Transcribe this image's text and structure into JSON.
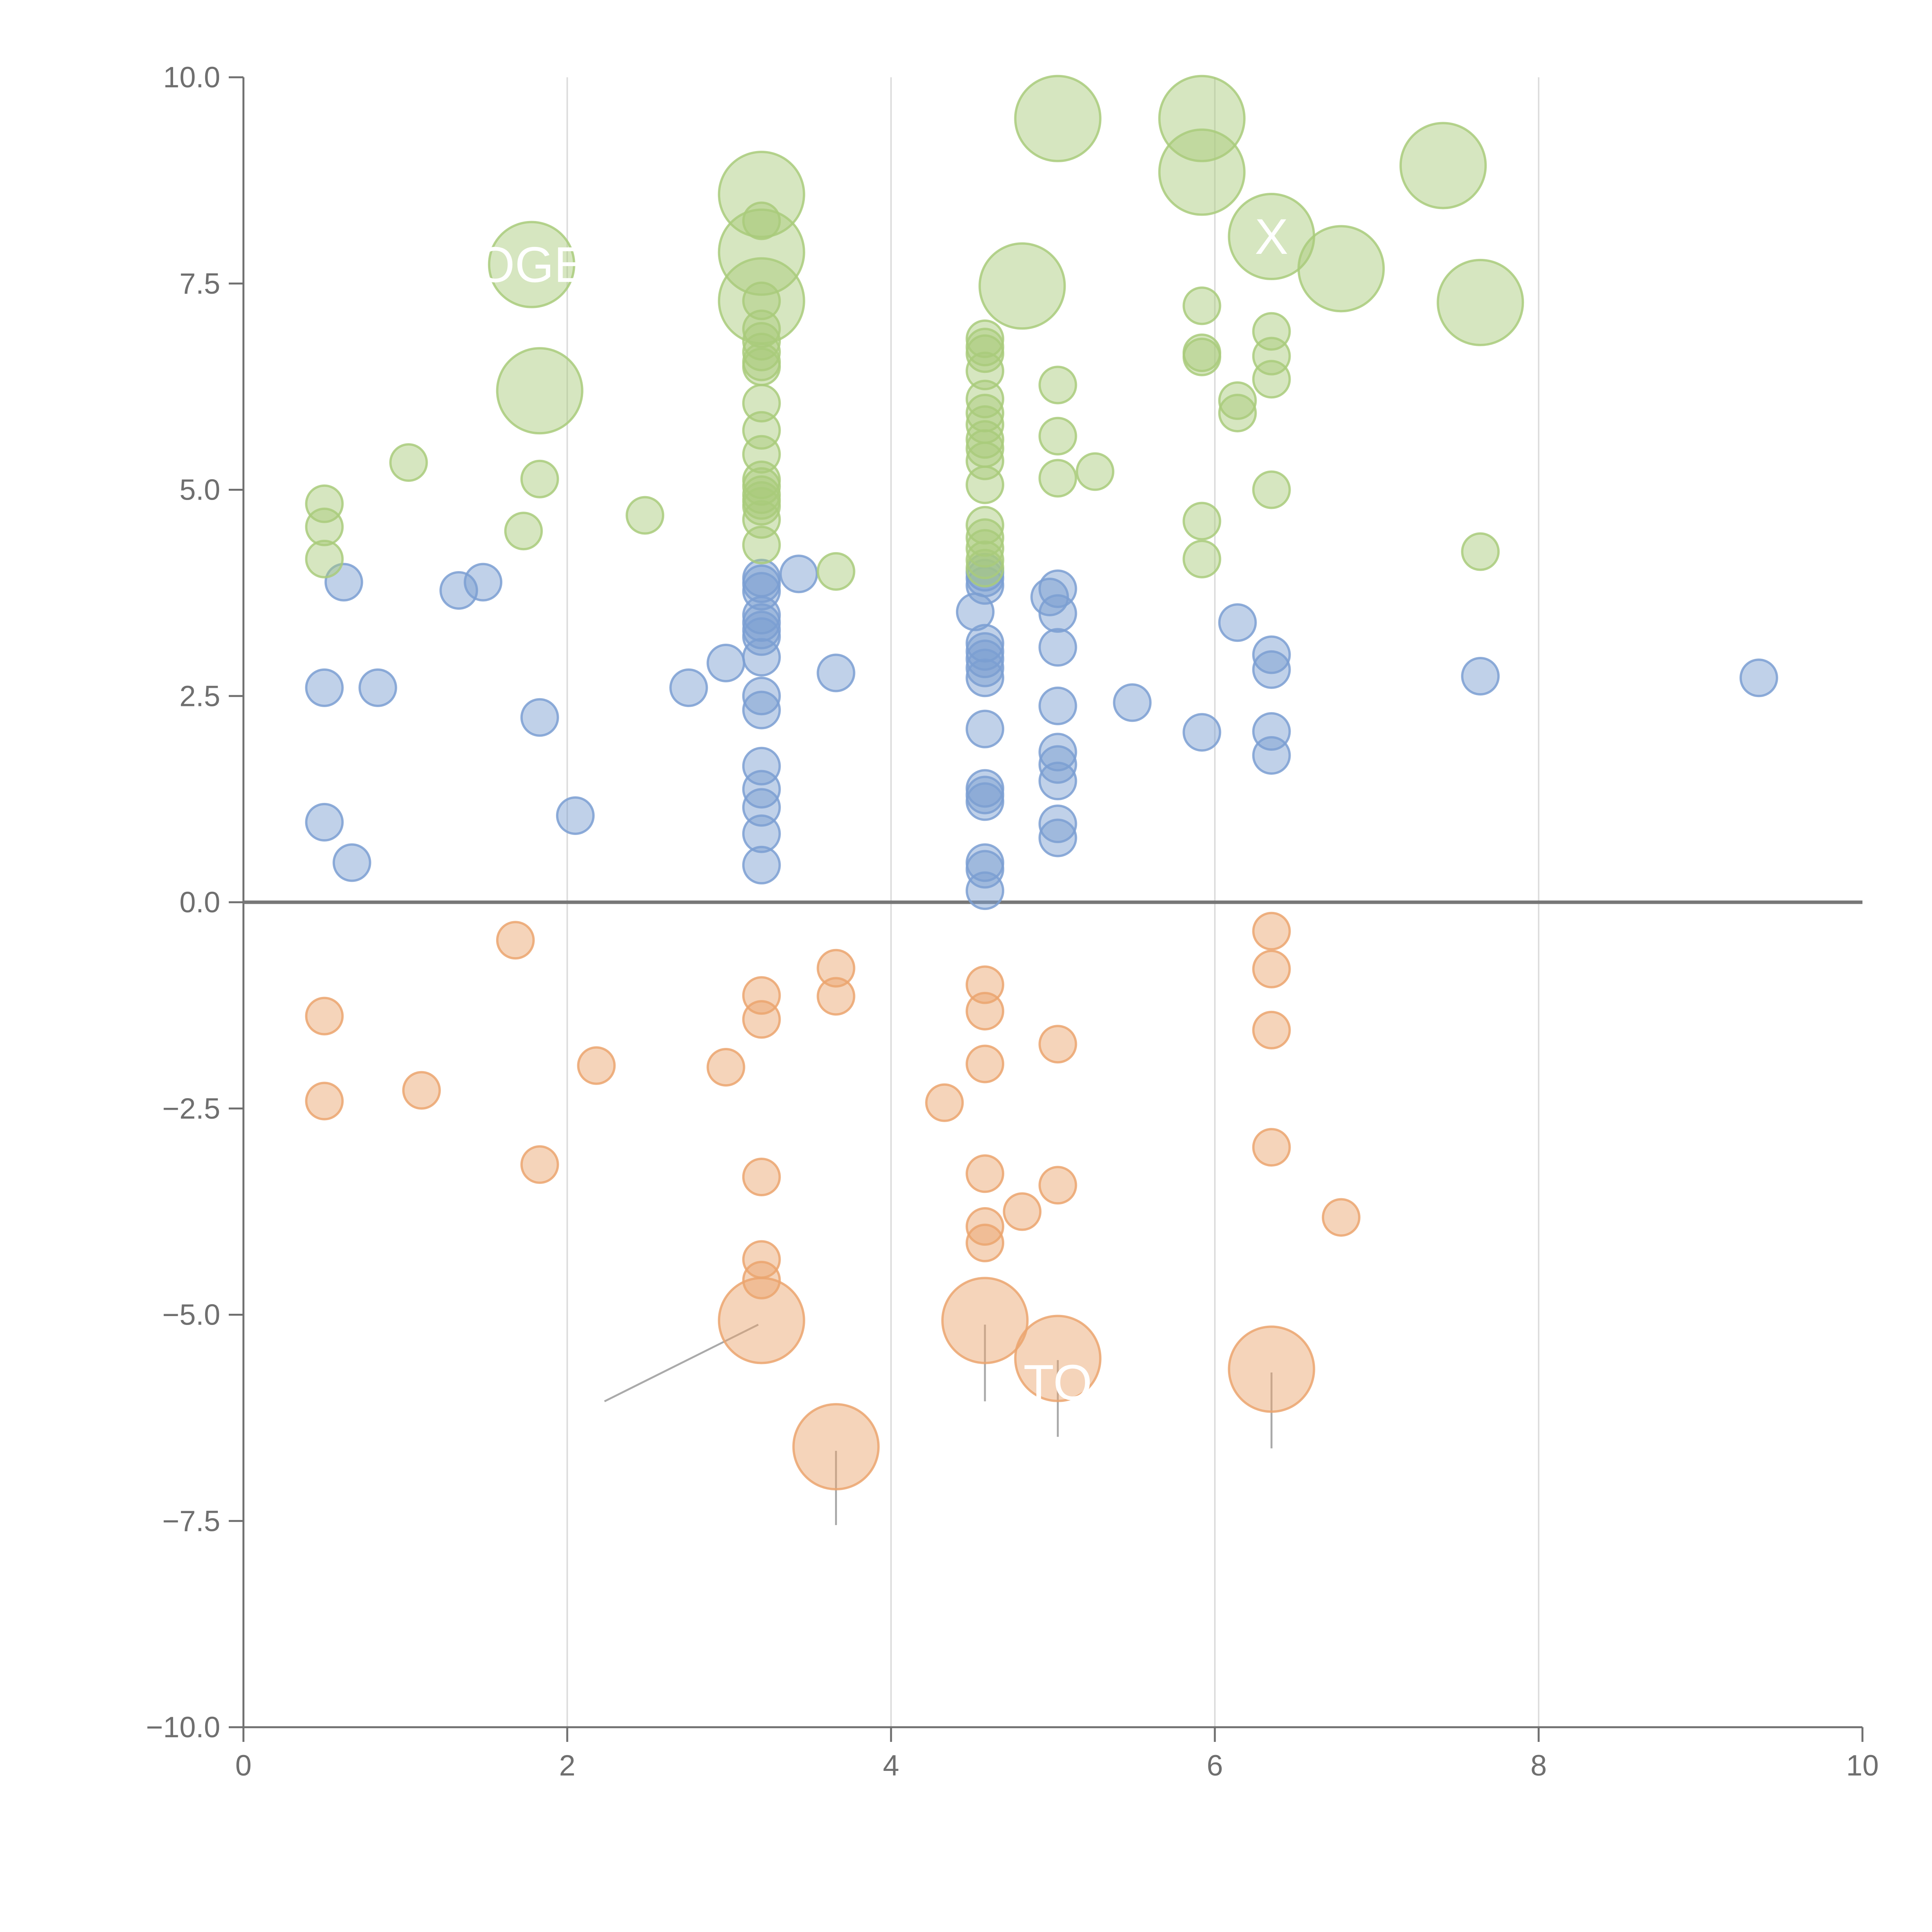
{
  "chart_data": {
    "type": "scatter",
    "title": "",
    "xlabel": "",
    "ylabel": "",
    "xlim": [
      0,
      10
    ],
    "ylim": [
      -10,
      10
    ],
    "x_ticks": [
      "0",
      "2",
      "4",
      "6",
      "8",
      "10"
    ],
    "x_tick_values": [
      0,
      2,
      4,
      6,
      8,
      10
    ],
    "y_ticks": [
      "10.0",
      "7.5",
      "5.0",
      "2.5",
      "0.0",
      "−2.5",
      "−5.0",
      "−7.5",
      "−10.0"
    ],
    "y_tick_values": [
      10,
      7.5,
      5,
      2.5,
      0,
      -2.5,
      -5,
      -7.5,
      -10
    ],
    "grid": "vertical",
    "zero_line": true,
    "colors": {
      "blue": "#7b9fd2",
      "green": "#a9cb7b",
      "orange": "#eba56f",
      "axis": "#6f6f6f",
      "grid": "#dddddd",
      "zero_line": "#777777",
      "leader": "#aaaaaa"
    },
    "series": [
      {
        "name": "Blue",
        "color": "#7b9fd2",
        "size": 1,
        "points": [
          [
            0.5,
            2.6
          ],
          [
            0.5,
            0.97
          ],
          [
            0.62,
            3.88
          ],
          [
            0.67,
            0.48
          ],
          [
            0.83,
            2.6
          ],
          [
            1.33,
            3.78
          ],
          [
            1.48,
            3.88
          ],
          [
            1.83,
            2.24
          ],
          [
            2.05,
            1.05
          ],
          [
            2.75,
            2.6
          ],
          [
            2.98,
            2.9
          ],
          [
            3.2,
            3.93
          ],
          [
            3.2,
            3.86
          ],
          [
            3.2,
            3.77
          ],
          [
            3.2,
            3.48
          ],
          [
            3.2,
            3.39
          ],
          [
            3.2,
            3.3
          ],
          [
            3.2,
            3.22
          ],
          [
            3.2,
            2.97
          ],
          [
            3.2,
            2.5
          ],
          [
            3.2,
            2.33
          ],
          [
            3.2,
            1.65
          ],
          [
            3.2,
            1.37
          ],
          [
            3.2,
            1.15
          ],
          [
            3.2,
            0.83
          ],
          [
            3.2,
            0.45
          ],
          [
            3.43,
            3.98
          ],
          [
            3.66,
            2.78
          ],
          [
            4.52,
            3.52
          ],
          [
            4.58,
            4.0
          ],
          [
            4.58,
            3.93
          ],
          [
            4.58,
            3.84
          ],
          [
            4.58,
            3.14
          ],
          [
            4.58,
            3.04
          ],
          [
            4.58,
            2.95
          ],
          [
            4.58,
            2.84
          ],
          [
            4.58,
            2.72
          ],
          [
            4.58,
            2.1
          ],
          [
            4.58,
            1.38
          ],
          [
            4.58,
            1.3
          ],
          [
            4.58,
            1.22
          ],
          [
            4.58,
            0.48
          ],
          [
            4.58,
            0.4
          ],
          [
            4.58,
            0.14
          ],
          [
            4.98,
            3.7
          ],
          [
            5.03,
            3.8
          ],
          [
            5.03,
            3.5
          ],
          [
            5.03,
            3.09
          ],
          [
            5.03,
            2.38
          ],
          [
            5.03,
            1.82
          ],
          [
            5.03,
            1.67
          ],
          [
            5.03,
            1.47
          ],
          [
            5.03,
            0.95
          ],
          [
            5.03,
            0.78
          ],
          [
            5.49,
            2.42
          ],
          [
            5.92,
            2.06
          ],
          [
            6.14,
            3.39
          ],
          [
            6.35,
            3.0
          ],
          [
            6.35,
            2.82
          ],
          [
            6.35,
            2.07
          ],
          [
            6.35,
            1.78
          ],
          [
            7.64,
            2.74
          ],
          [
            9.36,
            2.72
          ]
        ]
      },
      {
        "name": "Green",
        "color": "#a9cb7b",
        "size": 1,
        "points": [
          [
            0.5,
            4.83
          ],
          [
            0.5,
            4.55
          ],
          [
            0.5,
            4.16
          ],
          [
            1.02,
            5.33
          ],
          [
            1.73,
            4.5
          ],
          [
            1.83,
            5.13
          ],
          [
            2.48,
            4.69
          ],
          [
            3.2,
            8.26
          ],
          [
            3.2,
            7.29
          ],
          [
            3.2,
            6.95
          ],
          [
            3.2,
            6.8
          ],
          [
            3.2,
            6.67
          ],
          [
            3.2,
            6.55
          ],
          [
            3.2,
            6.49
          ],
          [
            3.2,
            6.05
          ],
          [
            3.2,
            5.72
          ],
          [
            3.2,
            5.43
          ],
          [
            3.2,
            5.12
          ],
          [
            3.2,
            5.04
          ],
          [
            3.2,
            4.94
          ],
          [
            3.2,
            4.87
          ],
          [
            3.2,
            4.8
          ],
          [
            3.2,
            4.64
          ],
          [
            3.2,
            4.33
          ],
          [
            3.66,
            4.01
          ],
          [
            4.58,
            6.83
          ],
          [
            4.58,
            6.73
          ],
          [
            4.58,
            6.65
          ],
          [
            4.58,
            6.44
          ],
          [
            4.58,
            6.1
          ],
          [
            4.58,
            5.93
          ],
          [
            4.58,
            5.79
          ],
          [
            4.58,
            5.61
          ],
          [
            4.58,
            5.5
          ],
          [
            4.58,
            5.35
          ],
          [
            4.58,
            5.06
          ],
          [
            4.58,
            4.57
          ],
          [
            4.58,
            4.42
          ],
          [
            4.58,
            4.29
          ],
          [
            4.58,
            4.15
          ],
          [
            4.58,
            4.05
          ],
          [
            5.03,
            6.27
          ],
          [
            5.03,
            5.65
          ],
          [
            5.03,
            5.14
          ],
          [
            5.26,
            5.22
          ],
          [
            5.92,
            7.23
          ],
          [
            5.92,
            6.66
          ],
          [
            5.92,
            6.61
          ],
          [
            5.92,
            4.62
          ],
          [
            5.92,
            4.16
          ],
          [
            6.14,
            6.08
          ],
          [
            6.14,
            5.93
          ],
          [
            6.35,
            6.92
          ],
          [
            6.35,
            6.62
          ],
          [
            6.35,
            6.34
          ],
          [
            6.35,
            5.0
          ],
          [
            7.64,
            4.25
          ]
        ]
      },
      {
        "name": "Green (large)",
        "color": "#a9cb7b",
        "size": 2,
        "points": [
          [
            1.78,
            7.73
          ],
          [
            1.83,
            6.2
          ],
          [
            3.2,
            8.58
          ],
          [
            3.2,
            7.88
          ],
          [
            3.2,
            7.29
          ],
          [
            4.81,
            7.47
          ],
          [
            5.03,
            9.5
          ],
          [
            5.92,
            9.5
          ],
          [
            5.92,
            8.85
          ],
          [
            6.35,
            8.07
          ],
          [
            6.78,
            7.68
          ],
          [
            7.41,
            8.93
          ],
          [
            7.64,
            7.27
          ]
        ]
      },
      {
        "name": "Orange",
        "color": "#eba56f",
        "size": 1,
        "points": [
          [
            0.5,
            -1.38
          ],
          [
            0.5,
            -2.41
          ],
          [
            1.1,
            -2.28
          ],
          [
            1.68,
            -0.46
          ],
          [
            1.83,
            -3.18
          ],
          [
            2.18,
            -1.98
          ],
          [
            2.98,
            -2.0
          ],
          [
            3.2,
            -1.13
          ],
          [
            3.2,
            -1.42
          ],
          [
            3.2,
            -3.33
          ],
          [
            3.2,
            -4.33
          ],
          [
            3.2,
            -4.58
          ],
          [
            3.66,
            -0.8
          ],
          [
            3.66,
            -1.14
          ],
          [
            4.33,
            -2.43
          ],
          [
            4.58,
            -1.0
          ],
          [
            4.58,
            -1.32
          ],
          [
            4.58,
            -1.96
          ],
          [
            4.58,
            -3.29
          ],
          [
            4.58,
            -3.93
          ],
          [
            4.58,
            -4.13
          ],
          [
            4.81,
            -3.75
          ],
          [
            5.03,
            -1.72
          ],
          [
            5.03,
            -3.43
          ],
          [
            6.35,
            -0.35
          ],
          [
            6.35,
            -0.81
          ],
          [
            6.35,
            -1.55
          ],
          [
            6.35,
            -2.97
          ],
          [
            6.78,
            -3.82
          ]
        ]
      },
      {
        "name": "Orange (large)",
        "color": "#eba56f",
        "size": 2,
        "points": [
          [
            3.2,
            -5.07
          ],
          [
            3.66,
            -6.6
          ],
          [
            4.58,
            -5.07
          ],
          [
            5.03,
            -5.53
          ],
          [
            6.35,
            -5.66
          ]
        ]
      }
    ],
    "bubble_labels": [
      {
        "text": "OGE",
        "x": 1.78,
        "y": 7.73
      },
      {
        "text": "X",
        "x": 6.35,
        "y": 8.07
      },
      {
        "text": "TO",
        "x": 5.03,
        "y": -5.82
      }
    ]
  }
}
